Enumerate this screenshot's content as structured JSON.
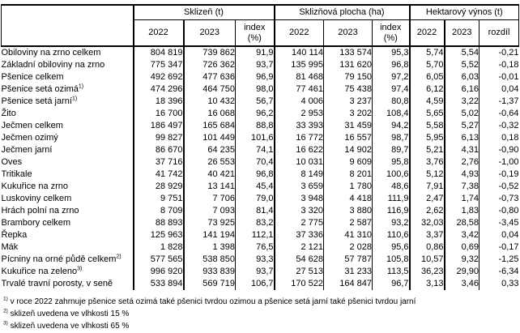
{
  "colors": {
    "background": "#ffffff",
    "text": "#000000",
    "border": "#000000"
  },
  "table": {
    "header": {
      "row_label_header": "",
      "groups": [
        {
          "title": "Sklizeň (t)",
          "columns": [
            "2022",
            "2023",
            "index\n(%)"
          ]
        },
        {
          "title": "Sklizňová plocha (ha)",
          "columns": [
            "2022",
            "2023",
            "index\n(%)"
          ]
        },
        {
          "title": "Hektarový výnos (t)",
          "columns": [
            "2022",
            "2023",
            "rozdíl"
          ]
        }
      ]
    },
    "rows": [
      {
        "label": "Obiloviny na zrno celkem",
        "indent": 0,
        "sup": "",
        "values": [
          "804 819",
          "739 862",
          "91,9",
          "140 114",
          "133 574",
          "95,3",
          "5,74",
          "5,54",
          "-0,21"
        ]
      },
      {
        "label": "Základní obiloviny na zrno",
        "indent": 1,
        "sup": "",
        "values": [
          "775 347",
          "726 362",
          "93,7",
          "135 995",
          "131 620",
          "96,8",
          "5,70",
          "5,52",
          "-0,18"
        ]
      },
      {
        "label": "Pšenice celkem",
        "indent": 2,
        "sup": "",
        "values": [
          "492 692",
          "477 636",
          "96,9",
          "81 468",
          "79 150",
          "97,2",
          "6,05",
          "6,03",
          "-0,01"
        ]
      },
      {
        "label": "Pšenice setá ozimá",
        "indent": 3,
        "sup": "1)",
        "values": [
          "474 296",
          "464 750",
          "98,0",
          "77 461",
          "75 438",
          "97,4",
          "6,12",
          "6,16",
          "0,04"
        ]
      },
      {
        "label": "Pšenice setá jarní",
        "indent": 3,
        "sup": "1)",
        "values": [
          "18 396",
          "10 432",
          "56,7",
          "4 006",
          "3 237",
          "80,8",
          "4,59",
          "3,22",
          "-1,37"
        ]
      },
      {
        "label": "Žito",
        "indent": 2,
        "sup": "",
        "values": [
          "16 700",
          "16 068",
          "96,2",
          "2 953",
          "3 202",
          "108,4",
          "5,65",
          "5,02",
          "-0,64"
        ]
      },
      {
        "label": "Ječmen celkem",
        "indent": 2,
        "sup": "",
        "values": [
          "186 497",
          "165 684",
          "88,8",
          "33 393",
          "31 459",
          "94,2",
          "5,58",
          "5,27",
          "-0,32"
        ]
      },
      {
        "label": "Ječmen ozimý",
        "indent": 3,
        "sup": "",
        "values": [
          "99 827",
          "101 449",
          "101,6",
          "16 772",
          "16 557",
          "98,7",
          "5,95",
          "6,13",
          "0,18"
        ]
      },
      {
        "label": "Ječmen jarní",
        "indent": 3,
        "sup": "",
        "values": [
          "86 670",
          "64 235",
          "74,1",
          "16 622",
          "14 902",
          "89,7",
          "5,21",
          "4,31",
          "-0,90"
        ]
      },
      {
        "label": "Oves",
        "indent": 2,
        "sup": "",
        "values": [
          "37 716",
          "26 553",
          "70,4",
          "10 031",
          "9 609",
          "95,8",
          "3,76",
          "2,76",
          "-1,00"
        ]
      },
      {
        "label": "Tritikale",
        "indent": 2,
        "sup": "",
        "values": [
          "41 742",
          "40 421",
          "96,8",
          "8 149",
          "8 201",
          "100,6",
          "5,12",
          "4,93",
          "-0,19"
        ]
      },
      {
        "label": "Kukuřice na zrno",
        "indent": 1,
        "sup": "",
        "values": [
          "28 929",
          "13 141",
          "45,4",
          "3 659",
          "1 780",
          "48,6",
          "7,91",
          "7,38",
          "-0,52"
        ]
      },
      {
        "label": "Luskoviny celkem",
        "indent": 0,
        "sup": "",
        "values": [
          "9 751",
          "7 706",
          "79,0",
          "3 948",
          "4 418",
          "111,9",
          "2,47",
          "1,74",
          "-0,73"
        ]
      },
      {
        "label": "Hrách polní na zrno",
        "indent": 1,
        "sup": "",
        "values": [
          "8 709",
          "7 093",
          "81,4",
          "3 320",
          "3 880",
          "116,9",
          "2,62",
          "1,83",
          "-0,80"
        ]
      },
      {
        "label": "Brambory celkem",
        "indent": 0,
        "sup": "",
        "values": [
          "88 893",
          "73 925",
          "83,2",
          "2 775",
          "2 587",
          "93,2",
          "32,03",
          "28,58",
          "-3,45"
        ]
      },
      {
        "label": "Řepka",
        "indent": 0,
        "sup": "",
        "values": [
          "125 963",
          "141 194",
          "112,1",
          "37 336",
          "41 310",
          "110,6",
          "3,37",
          "3,42",
          "0,04"
        ]
      },
      {
        "label": "Mák",
        "indent": 0,
        "sup": "",
        "values": [
          "1 828",
          "1 398",
          "76,5",
          "2 121",
          "2 028",
          "95,6",
          "0,86",
          "0,69",
          "-0,17"
        ]
      },
      {
        "label": "Pícniny na orné půdě celkem",
        "indent": 0,
        "sup": "2)",
        "values": [
          "577 565",
          "538 850",
          "93,3",
          "54 628",
          "57 787",
          "105,8",
          "10,57",
          "9,32",
          "-1,25"
        ]
      },
      {
        "label": "Kukuřice na zeleno",
        "indent": 1,
        "sup": "3)",
        "values": [
          "996 920",
          "933 839",
          "93,7",
          "27 513",
          "31 233",
          "113,5",
          "36,23",
          "29,90",
          "-6,34"
        ]
      },
      {
        "label": "Trvalé travní porosty, v seně",
        "indent": 0,
        "sup": "",
        "values": [
          "533 894",
          "569 719",
          "106,7",
          "170 522",
          "164 847",
          "96,7",
          "3,13",
          "3,46",
          "0,33"
        ]
      }
    ]
  },
  "footnotes": [
    {
      "marker": "1)",
      "text": "v roce 2022 zahrnuje pšenice setá ozimá také pšenici tvrdou ozimou a pšenice setá jarní také pšenici tvrdou jarní"
    },
    {
      "marker": "2)",
      "text": "sklizeň uvedena ve vlhkosti 15 %"
    },
    {
      "marker": "3)",
      "text": "sklizeň uvedena ve vlhkosti 65 %"
    }
  ]
}
